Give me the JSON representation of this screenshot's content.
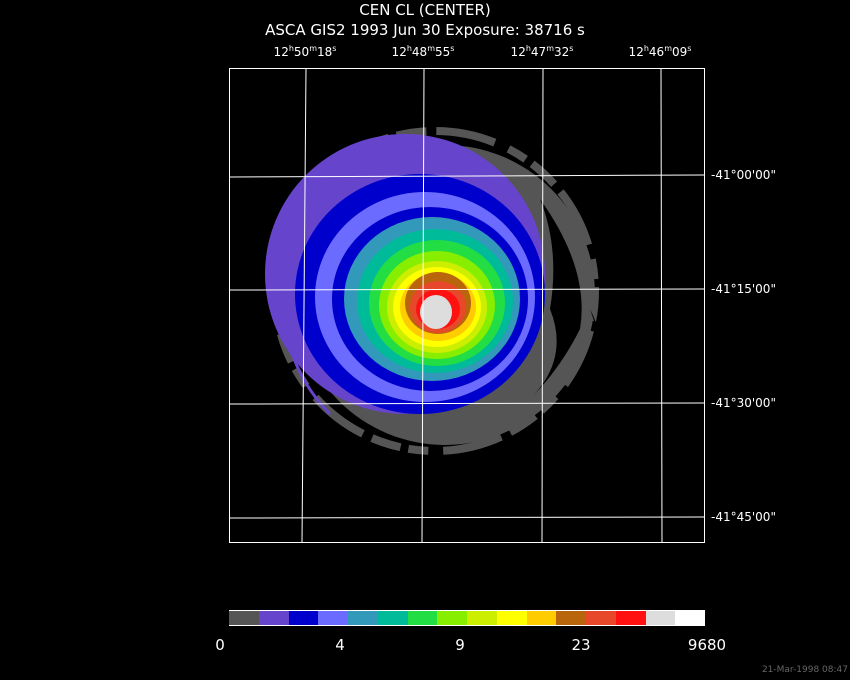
{
  "header": {
    "title": "CEN CL (CENTER)",
    "subtitle": "ASCA GIS2    1993 Jun 30    Exposure: 38716 s"
  },
  "ra_ticks": [
    {
      "h": "12",
      "m": "50",
      "s": "18"
    },
    {
      "h": "12",
      "m": "48",
      "s": "55"
    },
    {
      "h": "12",
      "m": "47",
      "s": "32"
    },
    {
      "h": "12",
      "m": "46",
      "s": "09"
    }
  ],
  "dec_ticks": [
    "-41°00'00\"",
    "-41°15'00\"",
    "-41°30'00\"",
    "-41°45'00\""
  ],
  "colorbar": {
    "labels": [
      "0",
      "4",
      "9",
      "23",
      "9680"
    ],
    "colors": [
      "#555555",
      "#6644cc",
      "#0000cc",
      "#6b6bff",
      "#3399bb",
      "#00bb99",
      "#22dd44",
      "#88ee00",
      "#ccee00",
      "#ffff00",
      "#ffcc00",
      "#b8650c",
      "#e8482a",
      "#ff1111",
      "#dddddd",
      "#ffffff"
    ]
  },
  "timestamp": "21-Mar-1998 08:47"
}
